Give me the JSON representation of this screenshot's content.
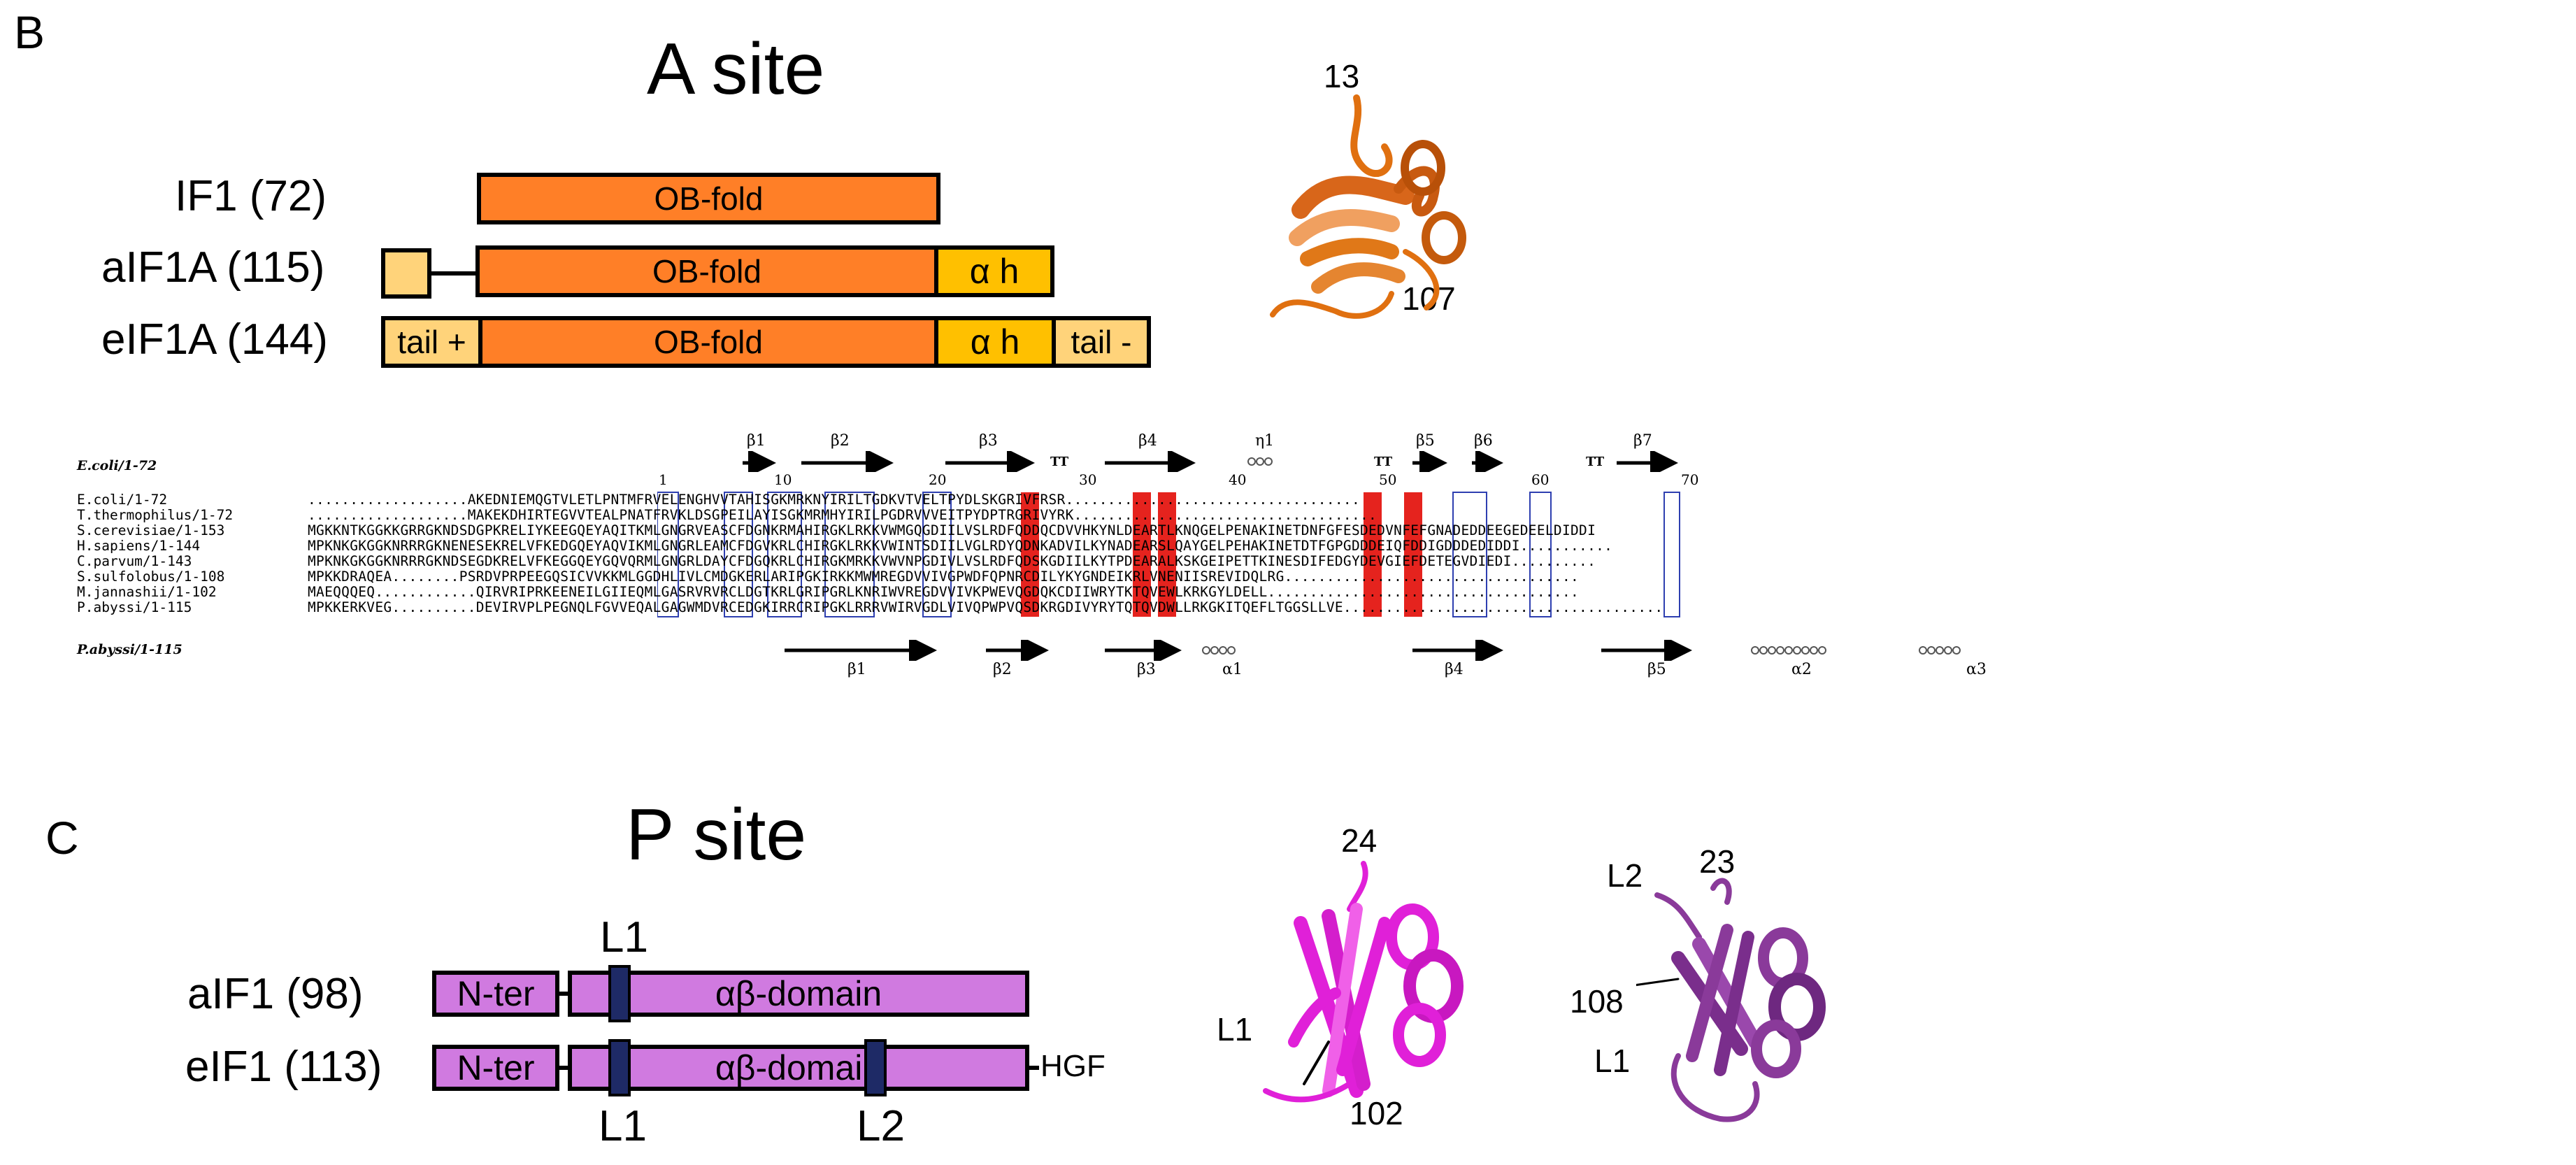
{
  "panel_b": {
    "letter": "B",
    "title": "A site",
    "proteins": [
      {
        "label": "IF1 (72)",
        "ob": "OB-fold"
      },
      {
        "label": "aIF1A (115)",
        "ob": "OB-fold",
        "ah": "α h"
      },
      {
        "label": "eIF1A (144)",
        "tail_pos": "tail +",
        "ob": "OB-fold",
        "ah": "α h",
        "tail_neg": "tail -"
      }
    ],
    "structure_labels": {
      "n": "13",
      "c": "107"
    },
    "alignment": {
      "top_name": "E.coli/1-72",
      "bottom_name": "P.abyssi/1-115",
      "ruler": [
        "1",
        "10",
        "20",
        "30",
        "40",
        "50",
        "60",
        "70"
      ],
      "top_ss": [
        "β1",
        "β2",
        "β3",
        "TT",
        "β4",
        "η1",
        "TT",
        "β5",
        "β6",
        "TT",
        "β7"
      ],
      "bottom_ss": [
        "β1",
        "β2",
        "β3",
        "α1",
        "β4",
        "β5",
        "α2",
        "α3"
      ],
      "names": [
        "E.coli/1-72",
        "T.thermophilus/1-72",
        "S.cerevisiae/1-153",
        "H.sapiens/1-144",
        "C.parvum/1-143",
        "S.sulfolobus/1-108",
        "M.jannashii/1-102",
        "P.abyssi/1-115"
      ],
      "seqs": [
        "...................AKEDNIEMQGTVLETLPNTMFRVELENGHVVTAHISGKMRKNYIRILTGDKVTVELTPYDLSKGRIVFRSR...................................",
        "...................MAKEKDHIRTEGVVTEALPNATFRVKLDSGPEILAYISGKMRMHYIRILPGDRVVVEITPYDPTRGRIVYRK....................................",
        "MGKKNTKGGKKGRRGKNDSDGPKRELIYKEEGQEYAQITKMLGNGRVEASCFDGNKRMAHIRGKLRKKVWMGQGDIILVSLRDFQDDQCDVVHKYNLDEARTLKNQGELPENAKINETDNFGFESDEDVNFEFGNADEDDEEGEDEELDIDDI",
        "MPKNKGKGGKNRRRGKNENESEKRELVFKEDGQEYAQVIKMLGNGRLEAMCFDGVKRLCHIRGKLRKKVWINTSDIILVGLRDYQDNKADVILKYNADEARSLQAYGELPEHAKINETDTFGPGDDDEIQFDDIGDDDEDIDDI...........",
        "MPKNKGKGGKNRRRGKNDSEGDKRELVFKEGGQEYGQVQRMLGNGRLDAYCFDGQKRLCHIRGKMRKKVWVNPGDIVLVSLRDFQDSKGDIILKYTPDEARALKSKGEIPETTKINESDIFEDGYDEVGIEFDETEGVDIEDI..........",
        "MPKKDRAQEA........PSRDVPRPEEGQSICVVKKMLGGDHLIVLCMDGKERLARIPGKIRKKMWMREGDVVIVGPWDFQPNRCDILYKYGNDEIKRLVNENIISREVIDQLRG...................................",
        "MAEQQQEQ............QIRVRIPRKEENEILGIIEQMLGASRVRVRCLDGTKRLGRIPGRLKNRIWVREGDVVIVKPWEVQGDQKCDIIWRYTKTQVEWLKRKGYLDELL.....................................",
        "MPKKERKVEG..........DEVIRVPLPEGNQLFGVVEQALGAGWMDVRCEDGKIRRCRIPGKLRRRVWIRVGDLVIVQPWPVQSDKRGDIVYRYTQTQVDWLLRKGKITQEFLTGGSLLVE......................................"
      ]
    }
  },
  "panel_c": {
    "letter": "C",
    "title": "P site",
    "proteins": [
      {
        "label": "aIF1 (98)",
        "nter": "N-ter",
        "domain": "αβ-domain"
      },
      {
        "label": "eIF1 (113)",
        "nter": "N-ter",
        "domain": "αβ-domain",
        "tail": "HGF"
      }
    ],
    "loop_labels": {
      "l1_top": "L1",
      "l1_bottom": "L1",
      "l2_bottom": "L2"
    },
    "struct1_labels": {
      "n": "24",
      "l1": "L1",
      "c": "102"
    },
    "struct2_labels": {
      "l2": "L2",
      "n": "23",
      "c": "108",
      "l1": "L1"
    }
  },
  "colors": {
    "ob_fold": "#ff7f27",
    "tail": "#ffd37a",
    "alpha_h": "#ffc000",
    "purple_domain": "#d07ae0",
    "loop": "#1e2a66",
    "identity_red": "#e5231e",
    "magenta_structure": "#e020d8",
    "violet_structure": "#8a3a9a",
    "orange_structure": "#e07010"
  }
}
